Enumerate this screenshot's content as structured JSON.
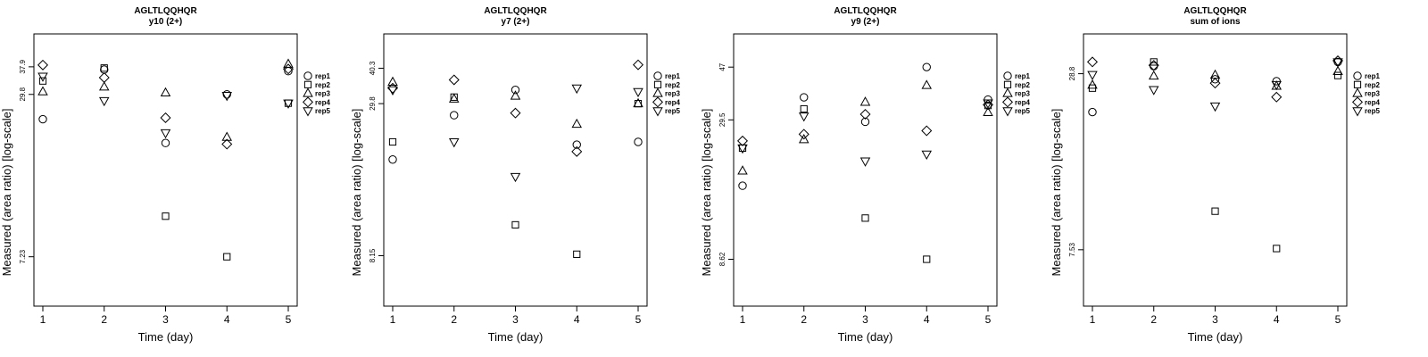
{
  "chart_data": [
    {
      "type": "scatter",
      "title": "AGLTLQQHQR",
      "subtitle": "y10 (2+)",
      "xlabel": "Time (day)",
      "ylabel": "Measured (area ratio) [log-scale]",
      "x_ticks": [
        "1",
        "2",
        "3",
        "4",
        "5"
      ],
      "y_ticks": [
        {
          "value": 37.9,
          "label": "37.9"
        },
        {
          "value": 29.8,
          "label": "29.8"
        },
        {
          "value": 7.23,
          "label": "7.23"
        }
      ],
      "ylim": [
        4.7,
        50.5
      ],
      "log_y": true,
      "legend_position": "right",
      "series": [
        {
          "name": "rep1",
          "marker": "circle",
          "x": [
            1,
            2,
            3,
            4,
            5
          ],
          "y": [
            24.0,
            37.0,
            19.5,
            29.8,
            36.5
          ]
        },
        {
          "name": "rep2",
          "marker": "square",
          "x": [
            1,
            2,
            3,
            4,
            5
          ],
          "y": [
            33.5,
            37.5,
            10.3,
            7.23,
            27.6
          ]
        },
        {
          "name": "rep3",
          "marker": "triangle-up",
          "x": [
            1,
            2,
            3,
            4,
            5
          ],
          "y": [
            30.5,
            31.8,
            30.2,
            20.5,
            38.8
          ]
        },
        {
          "name": "rep4",
          "marker": "diamond",
          "x": [
            1,
            2,
            3,
            4,
            5
          ],
          "y": [
            38.5,
            34.5,
            24.3,
            19.3,
            37.2
          ]
        },
        {
          "name": "rep5",
          "marker": "triangle-down",
          "x": [
            1,
            2,
            3,
            4,
            5
          ],
          "y": [
            34.9,
            28.2,
            21.3,
            29.5,
            27.6
          ]
        }
      ]
    },
    {
      "type": "scatter",
      "title": "AGLTLQQHQR",
      "subtitle": "y7 (2+)",
      "xlabel": "Time (day)",
      "ylabel": "Measured (area ratio) [log-scale]",
      "x_ticks": [
        "1",
        "2",
        "3",
        "4",
        "5"
      ],
      "y_ticks": [
        {
          "value": 40.3,
          "label": "40.3"
        },
        {
          "value": 29.8,
          "label": "29.8"
        },
        {
          "value": 8.15,
          "label": "8.15"
        }
      ],
      "ylim": [
        5.3,
        54
      ],
      "log_y": true,
      "legend_position": "right",
      "series": [
        {
          "name": "rep1",
          "marker": "circle",
          "x": [
            1,
            2,
            3,
            4,
            5
          ],
          "y": [
            18.5,
            27.0,
            33.5,
            21.0,
            21.5
          ]
        },
        {
          "name": "rep2",
          "marker": "square",
          "x": [
            1,
            2,
            3,
            4,
            5
          ],
          "y": [
            21.5,
            31.5,
            10.6,
            8.25,
            29.8
          ]
        },
        {
          "name": "rep3",
          "marker": "triangle-up",
          "x": [
            1,
            2,
            3,
            4,
            5
          ],
          "y": [
            35.8,
            31.0,
            31.8,
            25.0,
            29.8
          ]
        },
        {
          "name": "rep4",
          "marker": "diamond",
          "x": [
            1,
            2,
            3,
            4,
            5
          ],
          "y": [
            34.0,
            36.5,
            27.5,
            19.8,
            41.5
          ]
        },
        {
          "name": "rep5",
          "marker": "triangle-down",
          "x": [
            1,
            2,
            3,
            4,
            5
          ],
          "y": [
            33.5,
            21.5,
            16.0,
            34.0,
            33.0
          ]
        }
      ]
    },
    {
      "type": "scatter",
      "title": "AGLTLQQHQR",
      "subtitle": "y9 (2+)",
      "xlabel": "Time (day)",
      "ylabel": "Measured (area ratio) [log-scale]",
      "x_ticks": [
        "1",
        "2",
        "3",
        "4",
        "5"
      ],
      "y_ticks": [
        {
          "value": 47,
          "label": "47"
        },
        {
          "value": 29.5,
          "label": "29.5"
        },
        {
          "value": 8.62,
          "label": "8.62"
        }
      ],
      "ylim": [
        5.7,
        63
      ],
      "log_y": true,
      "legend_position": "right",
      "series": [
        {
          "name": "rep1",
          "marker": "circle",
          "x": [
            1,
            2,
            3,
            4,
            5
          ],
          "y": [
            16.5,
            36.0,
            29.0,
            47.0,
            35.3
          ]
        },
        {
          "name": "rep2",
          "marker": "square",
          "x": [
            1,
            2,
            3,
            4,
            5
          ],
          "y": [
            23.0,
            32.5,
            12.4,
            8.62,
            33.5
          ]
        },
        {
          "name": "rep3",
          "marker": "triangle-up",
          "x": [
            1,
            2,
            3,
            4,
            5
          ],
          "y": [
            18.8,
            24.8,
            34.5,
            40.0,
            31.5
          ]
        },
        {
          "name": "rep4",
          "marker": "diamond",
          "x": [
            1,
            2,
            3,
            4,
            5
          ],
          "y": [
            24.5,
            26.0,
            31.0,
            26.8,
            33.7
          ]
        },
        {
          "name": "rep5",
          "marker": "triangle-down",
          "x": [
            1,
            2,
            3,
            4,
            5
          ],
          "y": [
            23.0,
            30.5,
            20.5,
            21.8,
            34.2
          ]
        }
      ]
    },
    {
      "type": "scatter",
      "title": "AGLTLQQHQR",
      "subtitle": "sum of ions",
      "xlabel": "Time (day)",
      "ylabel": "Measured (area ratio) [log-scale]",
      "x_ticks": [
        "1",
        "2",
        "3",
        "4",
        "5"
      ],
      "y_ticks": [
        {
          "value": 28.8,
          "label": "28.8"
        },
        {
          "value": 7.53,
          "label": "7.53"
        }
      ],
      "ylim": [
        4.9,
        39
      ],
      "log_y": true,
      "legend_position": "right",
      "series": [
        {
          "name": "rep1",
          "marker": "circle",
          "x": [
            1,
            2,
            3,
            4,
            5
          ],
          "y": [
            21.5,
            30.5,
            27.6,
            27.2,
            31.5
          ]
        },
        {
          "name": "rep2",
          "marker": "square",
          "x": [
            1,
            2,
            3,
            4,
            5
          ],
          "y": [
            25.8,
            31.5,
            10.1,
            7.6,
            28.4
          ]
        },
        {
          "name": "rep3",
          "marker": "triangle-up",
          "x": [
            1,
            2,
            3,
            4,
            5
          ],
          "y": [
            26.4,
            28.3,
            28.5,
            26.2,
            29.3
          ]
        },
        {
          "name": "rep4",
          "marker": "diamond",
          "x": [
            1,
            2,
            3,
            4,
            5
          ],
          "y": [
            31.5,
            30.7,
            26.8,
            24.1,
            31.8
          ]
        },
        {
          "name": "rep5",
          "marker": "triangle-down",
          "x": [
            1,
            2,
            3,
            4,
            5
          ],
          "y": [
            28.6,
            25.5,
            22.5,
            26.5,
            31.5
          ]
        }
      ]
    }
  ]
}
